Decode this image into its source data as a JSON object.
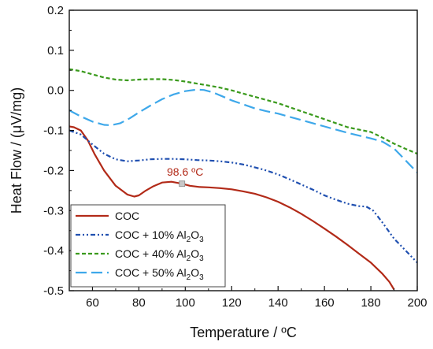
{
  "chart_data": {
    "type": "line",
    "title": "",
    "xlabel": "Temperature / ºC",
    "ylabel": "Heat Flow / (μV/mg)",
    "xlim": [
      50,
      200
    ],
    "ylim": [
      -0.5,
      0.2
    ],
    "xticks": [
      60,
      80,
      100,
      120,
      140,
      160,
      180,
      200
    ],
    "yticks": [
      0.2,
      0.1,
      0.0,
      -0.1,
      -0.2,
      -0.3,
      -0.4,
      -0.5
    ],
    "ytick_labels": [
      "0.2",
      "0.1",
      "0.0",
      "-0.1",
      "-0.2",
      "-0.3",
      "-0.4",
      "-0.5"
    ],
    "grid": false,
    "legend_position": "bottom-left",
    "series": [
      {
        "name": "COC",
        "legend_base": "COC",
        "legend_sub": "",
        "legend_tail": "",
        "color": "#b22a18",
        "dash": "solid",
        "x": [
          50,
          52,
          55,
          58,
          61,
          65,
          70,
          75,
          78,
          80,
          83,
          86,
          90,
          94,
          98.6,
          102,
          106,
          110,
          115,
          120,
          125,
          130,
          135,
          140,
          145,
          150,
          155,
          160,
          165,
          170,
          175,
          180,
          185,
          188,
          190
        ],
        "y": [
          -0.09,
          -0.092,
          -0.1,
          -0.125,
          -0.16,
          -0.2,
          -0.238,
          -0.26,
          -0.265,
          -0.262,
          -0.25,
          -0.24,
          -0.23,
          -0.228,
          -0.233,
          -0.238,
          -0.241,
          -0.242,
          -0.244,
          -0.247,
          -0.252,
          -0.258,
          -0.267,
          -0.278,
          -0.292,
          -0.308,
          -0.326,
          -0.345,
          -0.365,
          -0.386,
          -0.408,
          -0.43,
          -0.458,
          -0.478,
          -0.497
        ]
      },
      {
        "name": "COC + 10% Al2O3",
        "legend_base": "COC + 10% Al",
        "legend_sub": "2",
        "legend_tail": "O",
        "legend_sub2": "3",
        "color": "#1f4fb0",
        "dash": "dashdotdot",
        "x": [
          50,
          55,
          60,
          65,
          70,
          75,
          80,
          85,
          90,
          95,
          100,
          105,
          110,
          115,
          120,
          125,
          130,
          135,
          140,
          145,
          150,
          155,
          160,
          165,
          170,
          175,
          178,
          181,
          185,
          190,
          195,
          200
        ],
        "y": [
          -0.1,
          -0.11,
          -0.135,
          -0.158,
          -0.172,
          -0.177,
          -0.175,
          -0.172,
          -0.171,
          -0.171,
          -0.172,
          -0.174,
          -0.175,
          -0.177,
          -0.18,
          -0.185,
          -0.192,
          -0.2,
          -0.21,
          -0.222,
          -0.235,
          -0.248,
          -0.262,
          -0.273,
          -0.283,
          -0.289,
          -0.29,
          -0.3,
          -0.33,
          -0.37,
          -0.4,
          -0.43
        ]
      },
      {
        "name": "COC + 40% Al2O3",
        "legend_base": "COC + 40% Al",
        "legend_sub": "2",
        "legend_tail": "O",
        "legend_sub2": "3",
        "color": "#3a9a1c",
        "dash": "shortdash",
        "x": [
          50,
          55,
          60,
          65,
          70,
          75,
          80,
          85,
          90,
          95,
          100,
          105,
          110,
          115,
          120,
          125,
          130,
          135,
          140,
          145,
          150,
          155,
          160,
          165,
          170,
          175,
          180,
          185,
          190,
          195,
          200
        ],
        "y": [
          0.053,
          0.048,
          0.04,
          0.032,
          0.027,
          0.025,
          0.027,
          0.028,
          0.028,
          0.026,
          0.022,
          0.017,
          0.012,
          0.007,
          0.0,
          -0.008,
          -0.016,
          -0.024,
          -0.032,
          -0.042,
          -0.052,
          -0.062,
          -0.072,
          -0.082,
          -0.092,
          -0.098,
          -0.104,
          -0.118,
          -0.133,
          -0.146,
          -0.158
        ]
      },
      {
        "name": "COC + 50% Al2O3",
        "legend_base": "COC + 50% Al",
        "legend_sub": "2",
        "legend_tail": "O",
        "legend_sub2": "3",
        "color": "#3ea8ea",
        "dash": "longdash",
        "x": [
          50,
          55,
          60,
          65,
          68,
          72,
          76,
          80,
          85,
          90,
          95,
          100,
          105,
          108,
          112,
          116,
          120,
          125,
          130,
          135,
          140,
          145,
          150,
          155,
          160,
          165,
          170,
          175,
          180,
          185,
          190,
          195,
          200
        ],
        "y": [
          -0.05,
          -0.065,
          -0.078,
          -0.086,
          -0.087,
          -0.082,
          -0.07,
          -0.055,
          -0.038,
          -0.022,
          -0.01,
          -0.002,
          0.002,
          0.001,
          -0.005,
          -0.015,
          -0.025,
          -0.035,
          -0.045,
          -0.052,
          -0.058,
          -0.066,
          -0.074,
          -0.082,
          -0.09,
          -0.098,
          -0.106,
          -0.113,
          -0.12,
          -0.128,
          -0.145,
          -0.175,
          -0.205
        ]
      }
    ],
    "annotation": {
      "text": "98.6 ºC",
      "x": 98.6,
      "y": -0.233,
      "color": "#b22a18"
    }
  }
}
